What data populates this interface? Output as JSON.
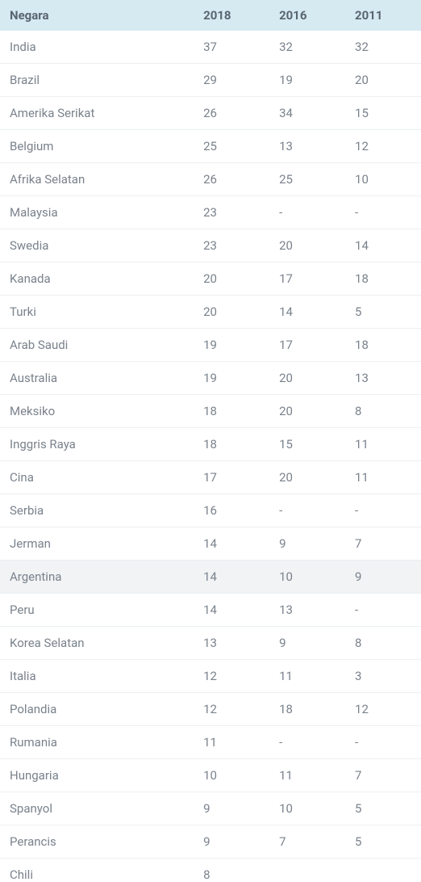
{
  "table": {
    "columns": [
      "Negara",
      "2018",
      "2016",
      "2011"
    ],
    "header_bg": "#d6eaf2",
    "header_color": "#5a6570",
    "border_color": "#eceff2",
    "text_color": "#7a828c",
    "alt_bg": "#f1f3f5",
    "col_widths": [
      "46%",
      "18%",
      "18%",
      "18%"
    ],
    "rows": [
      {
        "cells": [
          "India",
          "37",
          "32",
          "32"
        ],
        "alt": false
      },
      {
        "cells": [
          "Brazil",
          "29",
          "19",
          "20"
        ],
        "alt": false
      },
      {
        "cells": [
          "Amerika Serikat",
          "26",
          "34",
          "15"
        ],
        "alt": false
      },
      {
        "cells": [
          "Belgium",
          "25",
          "13",
          "12"
        ],
        "alt": false
      },
      {
        "cells": [
          "Afrika Selatan",
          "26",
          "25",
          "10"
        ],
        "alt": false
      },
      {
        "cells": [
          "Malaysia",
          "23",
          "-",
          "-"
        ],
        "alt": false
      },
      {
        "cells": [
          "Swedia",
          "23",
          "20",
          "14"
        ],
        "alt": false
      },
      {
        "cells": [
          "Kanada",
          "20",
          "17",
          "18"
        ],
        "alt": false
      },
      {
        "cells": [
          "Turki",
          "20",
          "14",
          "5"
        ],
        "alt": false
      },
      {
        "cells": [
          "Arab Saudi",
          "19",
          "17",
          "18"
        ],
        "alt": false
      },
      {
        "cells": [
          "Australia",
          "19",
          "20",
          "13"
        ],
        "alt": false
      },
      {
        "cells": [
          "Meksiko",
          "18",
          "20",
          "8"
        ],
        "alt": false
      },
      {
        "cells": [
          "Inggris Raya",
          "18",
          "15",
          "11"
        ],
        "alt": false
      },
      {
        "cells": [
          "Cina",
          "17",
          "20",
          "11"
        ],
        "alt": false
      },
      {
        "cells": [
          "Serbia",
          "16",
          "-",
          "-"
        ],
        "alt": false
      },
      {
        "cells": [
          "Jerman",
          "14",
          "9",
          "7"
        ],
        "alt": false
      },
      {
        "cells": [
          "Argentina",
          "14",
          "10",
          "9"
        ],
        "alt": true
      },
      {
        "cells": [
          "Peru",
          "14",
          "13",
          "-"
        ],
        "alt": false
      },
      {
        "cells": [
          "Korea Selatan",
          "13",
          "9",
          "8"
        ],
        "alt": false
      },
      {
        "cells": [
          "Italia",
          "12",
          "11",
          "3"
        ],
        "alt": false
      },
      {
        "cells": [
          "Polandia",
          "12",
          "18",
          "12"
        ],
        "alt": false
      },
      {
        "cells": [
          "Rumania",
          "11",
          "-",
          "-"
        ],
        "alt": false
      },
      {
        "cells": [
          "Hungaria",
          "10",
          "11",
          "7"
        ],
        "alt": false
      },
      {
        "cells": [
          "Spanyol",
          "9",
          "10",
          "5"
        ],
        "alt": false
      },
      {
        "cells": [
          "Perancis",
          "9",
          "7",
          "5"
        ],
        "alt": false
      }
    ],
    "cutoff_row": {
      "cells": [
        "Chili",
        "8",
        "",
        ""
      ]
    }
  }
}
